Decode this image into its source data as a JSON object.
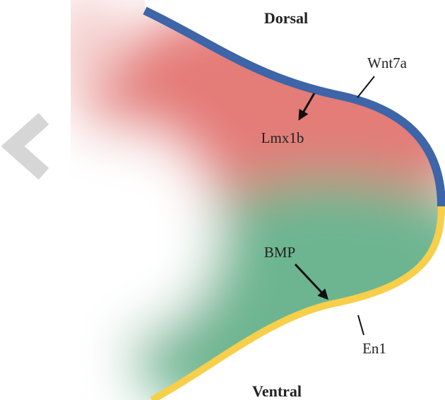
{
  "labels": {
    "dorsal": "Dorsal",
    "wnt7a": "Wnt7a",
    "lmx1b": "Lmx1b",
    "bmp": "BMP",
    "en1": "En1",
    "ventral": "Ventral"
  }
}
